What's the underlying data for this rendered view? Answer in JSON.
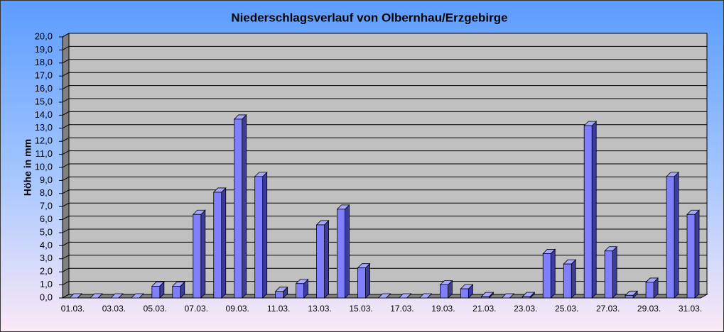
{
  "chart_data": {
    "type": "bar3d",
    "title": "Niederschlagsverlauf von Olbernhau/Erzgebirge",
    "y_label": "Höhe in mm",
    "categories": [
      "01.03.",
      null,
      "03.03.",
      null,
      "05.03.",
      null,
      "07.03.",
      null,
      "09.03.",
      null,
      "11.03.",
      null,
      "13.03.",
      null,
      "15.03.",
      null,
      "17.03.",
      null,
      "19.03.",
      null,
      "21.03.",
      null,
      "23.03.",
      null,
      "25.03.",
      null,
      "27.03.",
      null,
      "29.03.",
      null,
      "31.03."
    ],
    "values": [
      0,
      0,
      0,
      0,
      0.9,
      0.9,
      6.4,
      8.1,
      13.7,
      9.3,
      0.5,
      1.1,
      5.6,
      6.8,
      2.3,
      0,
      0,
      0,
      1.0,
      0.7,
      0.1,
      0,
      0.1,
      3.4,
      2.6,
      13.2,
      3.6,
      0.2,
      1.2,
      9.3,
      6.4
    ],
    "color": "#8080ff",
    "ylim": [
      0,
      20
    ],
    "yticks": [
      {
        "value": 0,
        "label": "0,0"
      },
      {
        "value": 1,
        "label": "1,0"
      },
      {
        "value": 2,
        "label": "2,0"
      },
      {
        "value": 3,
        "label": "3,0"
      },
      {
        "value": 4,
        "label": "4,0"
      },
      {
        "value": 5,
        "label": "5,0"
      },
      {
        "value": 6,
        "label": "6,0"
      },
      {
        "value": 7,
        "label": "7,0"
      },
      {
        "value": 8,
        "label": "8,0"
      },
      {
        "value": 9,
        "label": "9,0"
      },
      {
        "value": 10,
        "label": "10,0"
      },
      {
        "value": 11,
        "label": "11,0"
      },
      {
        "value": 12,
        "label": "12,0"
      },
      {
        "value": 13,
        "label": "13,0"
      },
      {
        "value": 14,
        "label": "14,0"
      },
      {
        "value": 15,
        "label": "15,0"
      },
      {
        "value": 16,
        "label": "16,0"
      },
      {
        "value": 17,
        "label": "17,0"
      },
      {
        "value": 18,
        "label": "18,0"
      },
      {
        "value": 19,
        "label": "19,0"
      },
      {
        "value": 20,
        "label": "20,0"
      }
    ],
    "grid": true
  }
}
